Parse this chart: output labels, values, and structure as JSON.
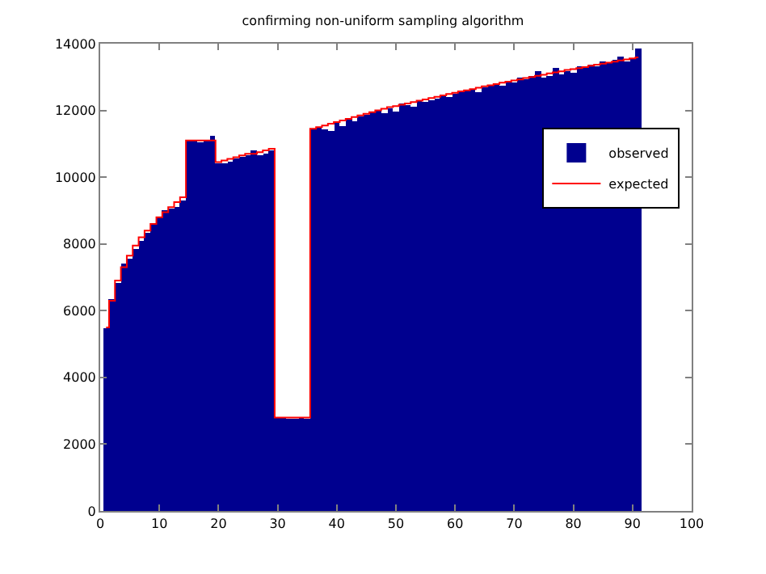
{
  "chart_data": {
    "type": "histogram",
    "title": "confirming non-uniform sampling algorithm",
    "bins": [
      0.5,
      1.5,
      2.5,
      3.5,
      4.5,
      5.5,
      6.5,
      7.5,
      8.5,
      9.5,
      10.5,
      11.5,
      12.5,
      13.5,
      14.5,
      15.5,
      16.5,
      17.5,
      18.5,
      19.5,
      20.5,
      21.5,
      22.5,
      23.5,
      24.5,
      25.5,
      26.5,
      27.5,
      28.5,
      29.5,
      30.5,
      31.5,
      32.5,
      33.5,
      34.5,
      35.5,
      36.5,
      37.5,
      38.5,
      39.5,
      40.5,
      41.5,
      42.5,
      43.5,
      44.5,
      45.5,
      46.5,
      47.5,
      48.5,
      49.5,
      50.5,
      51.5,
      52.5,
      53.5,
      54.5,
      55.5,
      56.5,
      57.5,
      58.5,
      59.5,
      60.5,
      61.5,
      62.5,
      63.5,
      64.5,
      65.5,
      66.5,
      67.5,
      68.5,
      69.5,
      70.5,
      71.5,
      72.5,
      73.5,
      74.5,
      75.5,
      76.5,
      77.5,
      78.5,
      79.5,
      80.5,
      81.5,
      82.5,
      83.5,
      84.5,
      85.5,
      86.5,
      87.5,
      88.5,
      89.5,
      90.5,
      91.5
    ],
    "series": [
      {
        "name": "observed",
        "color": "#00008f",
        "values": [
          5480,
          6350,
          6850,
          7400,
          7550,
          7850,
          8100,
          8350,
          8600,
          8800,
          9000,
          9050,
          9100,
          9300,
          11080,
          11100,
          11050,
          11100,
          11230,
          10400,
          10400,
          10450,
          10550,
          10600,
          10650,
          10820,
          10650,
          10700,
          10800,
          2800,
          2800,
          2780,
          2780,
          2800,
          2750,
          11420,
          11500,
          11450,
          11380,
          11650,
          11550,
          11700,
          11680,
          11800,
          11850,
          11950,
          12000,
          11900,
          12050,
          11950,
          12200,
          12150,
          12100,
          12300,
          12250,
          12300,
          12350,
          12450,
          12400,
          12500,
          12550,
          12600,
          12650,
          12550,
          12700,
          12750,
          12800,
          12750,
          12900,
          12850,
          13000,
          12950,
          13050,
          13200,
          13000,
          13050,
          13250,
          13100,
          13200,
          13150,
          13300,
          13250,
          13350,
          13300,
          13450,
          13400,
          13500,
          13600,
          13450,
          13550,
          13850
        ]
      },
      {
        "name": "expected",
        "type": "step",
        "color": "#ff0000",
        "x": [
          1,
          2,
          3,
          4,
          5,
          6,
          7,
          8,
          9,
          10,
          11,
          12,
          13,
          14,
          15,
          16,
          17,
          18,
          19,
          20,
          21,
          22,
          23,
          24,
          25,
          26,
          27,
          28,
          29,
          30,
          31,
          32,
          33,
          34,
          35,
          36,
          37,
          38,
          39,
          40,
          41,
          42,
          43,
          44,
          45,
          46,
          47,
          48,
          49,
          50,
          51,
          52,
          53,
          54,
          55,
          56,
          57,
          58,
          59,
          60,
          61,
          62,
          63,
          64,
          65,
          66,
          67,
          68,
          69,
          70,
          71,
          72,
          73,
          74,
          75,
          76,
          77,
          78,
          79,
          80,
          81,
          82,
          83,
          84,
          85,
          86,
          87,
          88,
          89,
          90,
          91
        ],
        "values": [
          5500,
          6300,
          6900,
          7300,
          7650,
          7950,
          8200,
          8400,
          8600,
          8800,
          8950,
          9100,
          9250,
          9400,
          11100,
          11100,
          11100,
          11100,
          11100,
          10450,
          10500,
          10550,
          10600,
          10650,
          10700,
          10700,
          10750,
          10800,
          10850,
          2800,
          2800,
          2800,
          2800,
          2800,
          2800,
          11450,
          11500,
          11550,
          11600,
          11650,
          11700,
          11750,
          11800,
          11850,
          11900,
          11950,
          12000,
          12050,
          12100,
          12130,
          12170,
          12210,
          12250,
          12290,
          12330,
          12370,
          12410,
          12450,
          12490,
          12530,
          12570,
          12600,
          12640,
          12680,
          12720,
          12750,
          12790,
          12830,
          12860,
          12900,
          12930,
          12970,
          13000,
          13040,
          13070,
          13110,
          13140,
          13170,
          13210,
          13240,
          13270,
          13300,
          13340,
          13370,
          13400,
          13430,
          13460,
          13500,
          13530,
          13560,
          13590
        ]
      }
    ],
    "xlim": [
      0,
      100
    ],
    "ylim": [
      0,
      14000
    ],
    "xticks": [
      0,
      10,
      20,
      30,
      40,
      50,
      60,
      70,
      80,
      90,
      100
    ],
    "yticks": [
      0,
      2000,
      4000,
      6000,
      8000,
      10000,
      12000,
      14000
    ],
    "legend": "top right"
  }
}
